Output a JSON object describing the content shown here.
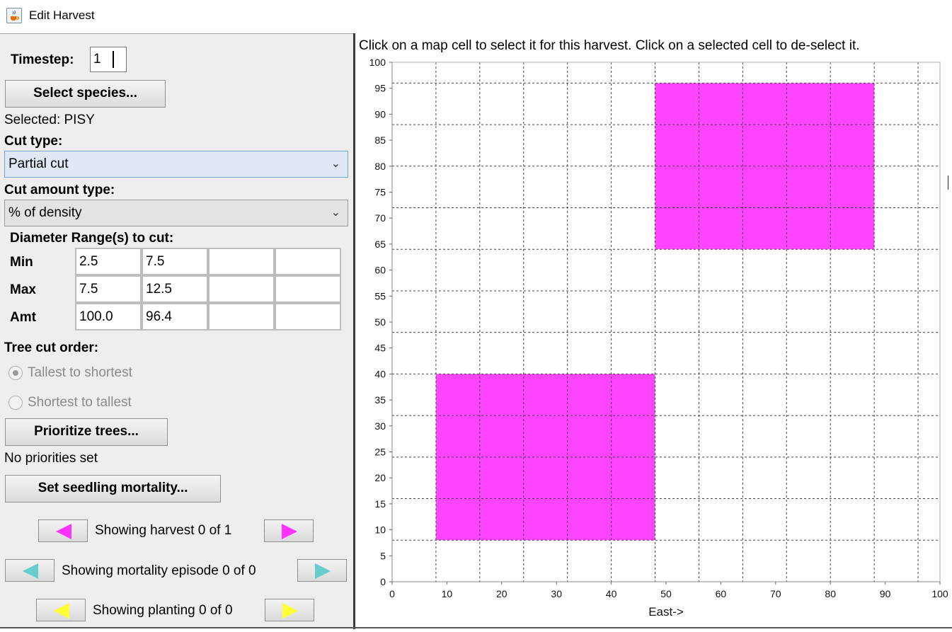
{
  "window": {
    "title": "Edit Harvest",
    "icon": "java-cup-icon"
  },
  "form": {
    "timestep_label": "Timestep:",
    "timestep_value": "1",
    "select_species_button": "Select species...",
    "selected_text": "Selected: PISY",
    "cut_type_label": "Cut type:",
    "cut_type_value": "Partial cut",
    "cut_amount_type_label": "Cut amount type:",
    "cut_amount_type_value": "% of density",
    "diameter_label": "Diameter Range(s) to cut:",
    "rows": [
      {
        "label": "Min",
        "values": [
          "2.5",
          "7.5",
          "",
          ""
        ]
      },
      {
        "label": "Max",
        "values": [
          "7.5",
          "12.5",
          "",
          ""
        ]
      },
      {
        "label": "Amt",
        "values": [
          "100.0",
          "96.4",
          "",
          ""
        ]
      }
    ],
    "tree_cut_order_label": "Tree cut order:",
    "order_options": [
      {
        "label": "Tallest to shortest",
        "selected": true
      },
      {
        "label": "Shortest to tallest",
        "selected": false
      }
    ],
    "prioritize_button": "Prioritize trees...",
    "priorities_text": "No priorities set",
    "seedling_button": "Set seedling mortality..."
  },
  "navigation": {
    "harvest_text": "Showing harvest 0 of 1",
    "harvest_color": "#ff33ff",
    "mortality_text": "Showing mortality episode 0 of 0",
    "mortality_color": "#66cccc",
    "planting_text": "Showing planting 0 of 0",
    "planting_color": "#ffff33"
  },
  "map": {
    "instruction": "Click on a map cell to select it for this harvest.  Click on a selected cell to de-select it.",
    "x_label": "East->",
    "x_ticks": [
      0,
      10,
      20,
      30,
      40,
      50,
      60,
      70,
      80,
      90,
      100
    ],
    "y_ticks": [
      0,
      5,
      10,
      15,
      20,
      25,
      30,
      35,
      40,
      45,
      50,
      55,
      60,
      65,
      70,
      75,
      80,
      85,
      90,
      95,
      100
    ],
    "xlim": [
      0,
      100
    ],
    "ylim": [
      0,
      100
    ],
    "cell_size": 8,
    "selected_color": "#ff44ff",
    "selected_regions": [
      {
        "x": [
          48,
          88
        ],
        "y": [
          64,
          96
        ]
      },
      {
        "x": [
          8,
          48
        ],
        "y": [
          8,
          40
        ]
      }
    ]
  }
}
